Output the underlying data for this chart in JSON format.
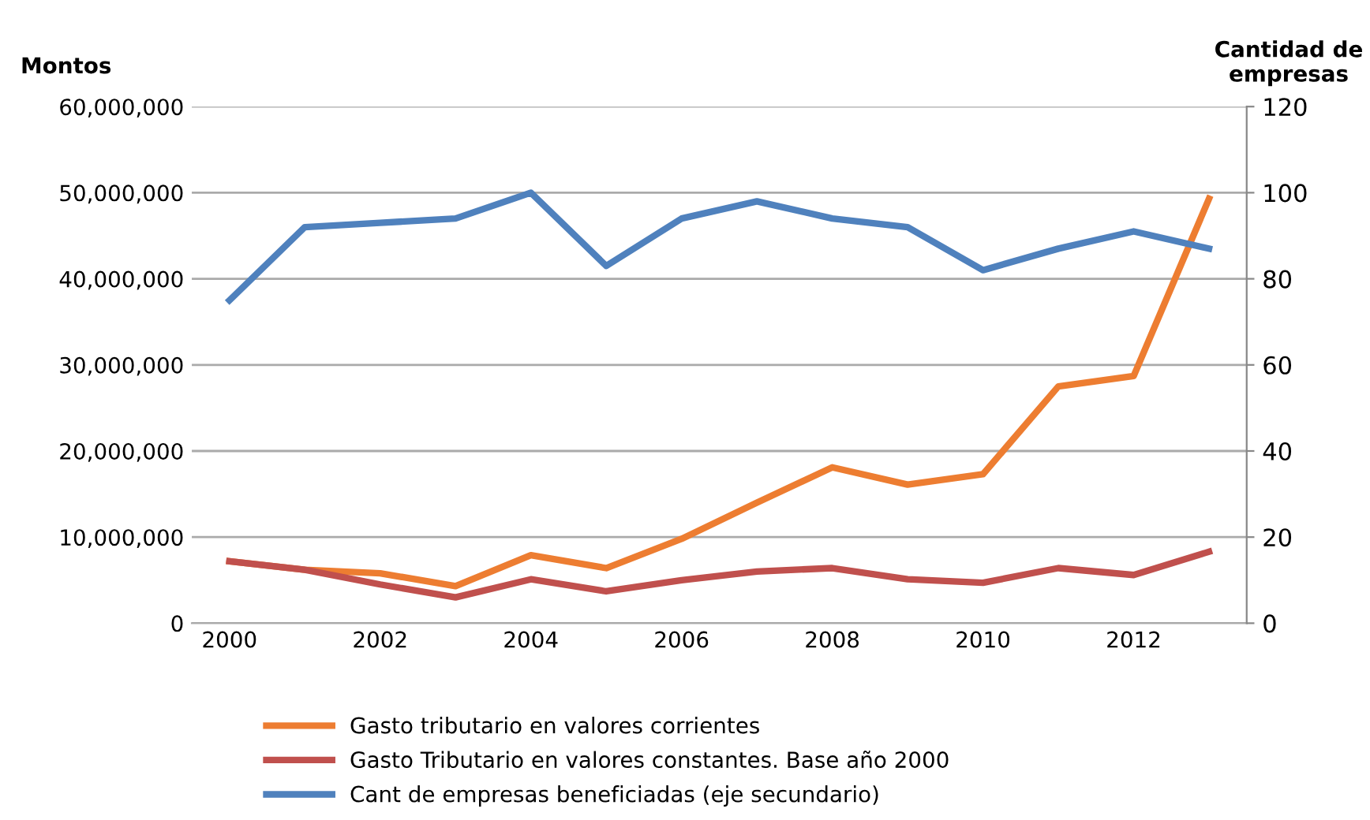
{
  "chart_data": {
    "type": "line",
    "ylabel": "Montos",
    "y2label": "Cantidad de\nempresas",
    "categories": [
      "2000",
      null,
      "2002",
      null,
      "2004",
      null,
      "2006",
      null,
      "2008",
      null,
      "2010",
      null,
      "2012",
      null
    ],
    "series": [
      {
        "name": "Gasto tributario en valores corrientes",
        "color": "#ed7d31",
        "values": [
          7200000,
          6200000,
          5800000,
          4300000,
          7900000,
          6400000,
          9800000,
          14000000,
          18100000,
          16100000,
          17300000,
          27500000,
          28700000,
          49300000
        ]
      },
      {
        "name": "Gasto Tributario en valores constantes. Base año 2000",
        "color": "#c0504d",
        "values": [
          7200000,
          6200000,
          4500000,
          3000000,
          5100000,
          3700000,
          5000000,
          6000000,
          6400000,
          5100000,
          4700000,
          6400000,
          5600000,
          8300000
        ]
      },
      {
        "name": "Cant de empresas beneficiadas (eje secundario)",
        "color": "#4f81bd",
        "axis": "y2",
        "values": [
          75,
          92,
          93,
          94,
          100,
          83,
          94,
          98,
          94,
          92,
          82,
          87,
          91,
          87
        ]
      }
    ],
    "ylim": [
      0,
      60000000
    ],
    "yticks": [
      {
        "value": 0,
        "label": "0"
      },
      {
        "value": 10000000,
        "label": "10,000,000"
      },
      {
        "value": 20000000,
        "label": "20,000,000"
      },
      {
        "value": 30000000,
        "label": "30,000,000"
      },
      {
        "value": 40000000,
        "label": "40,000,000"
      },
      {
        "value": 50000000,
        "label": "50,000,000"
      },
      {
        "value": 60000000,
        "label": "60,000,000"
      }
    ],
    "y2lim": [
      0,
      120
    ],
    "y2ticks": [
      0,
      20,
      40,
      60,
      80,
      100,
      120
    ],
    "grid": "y",
    "legend": "bottom",
    "marker": "none",
    "line_style": "solid"
  }
}
